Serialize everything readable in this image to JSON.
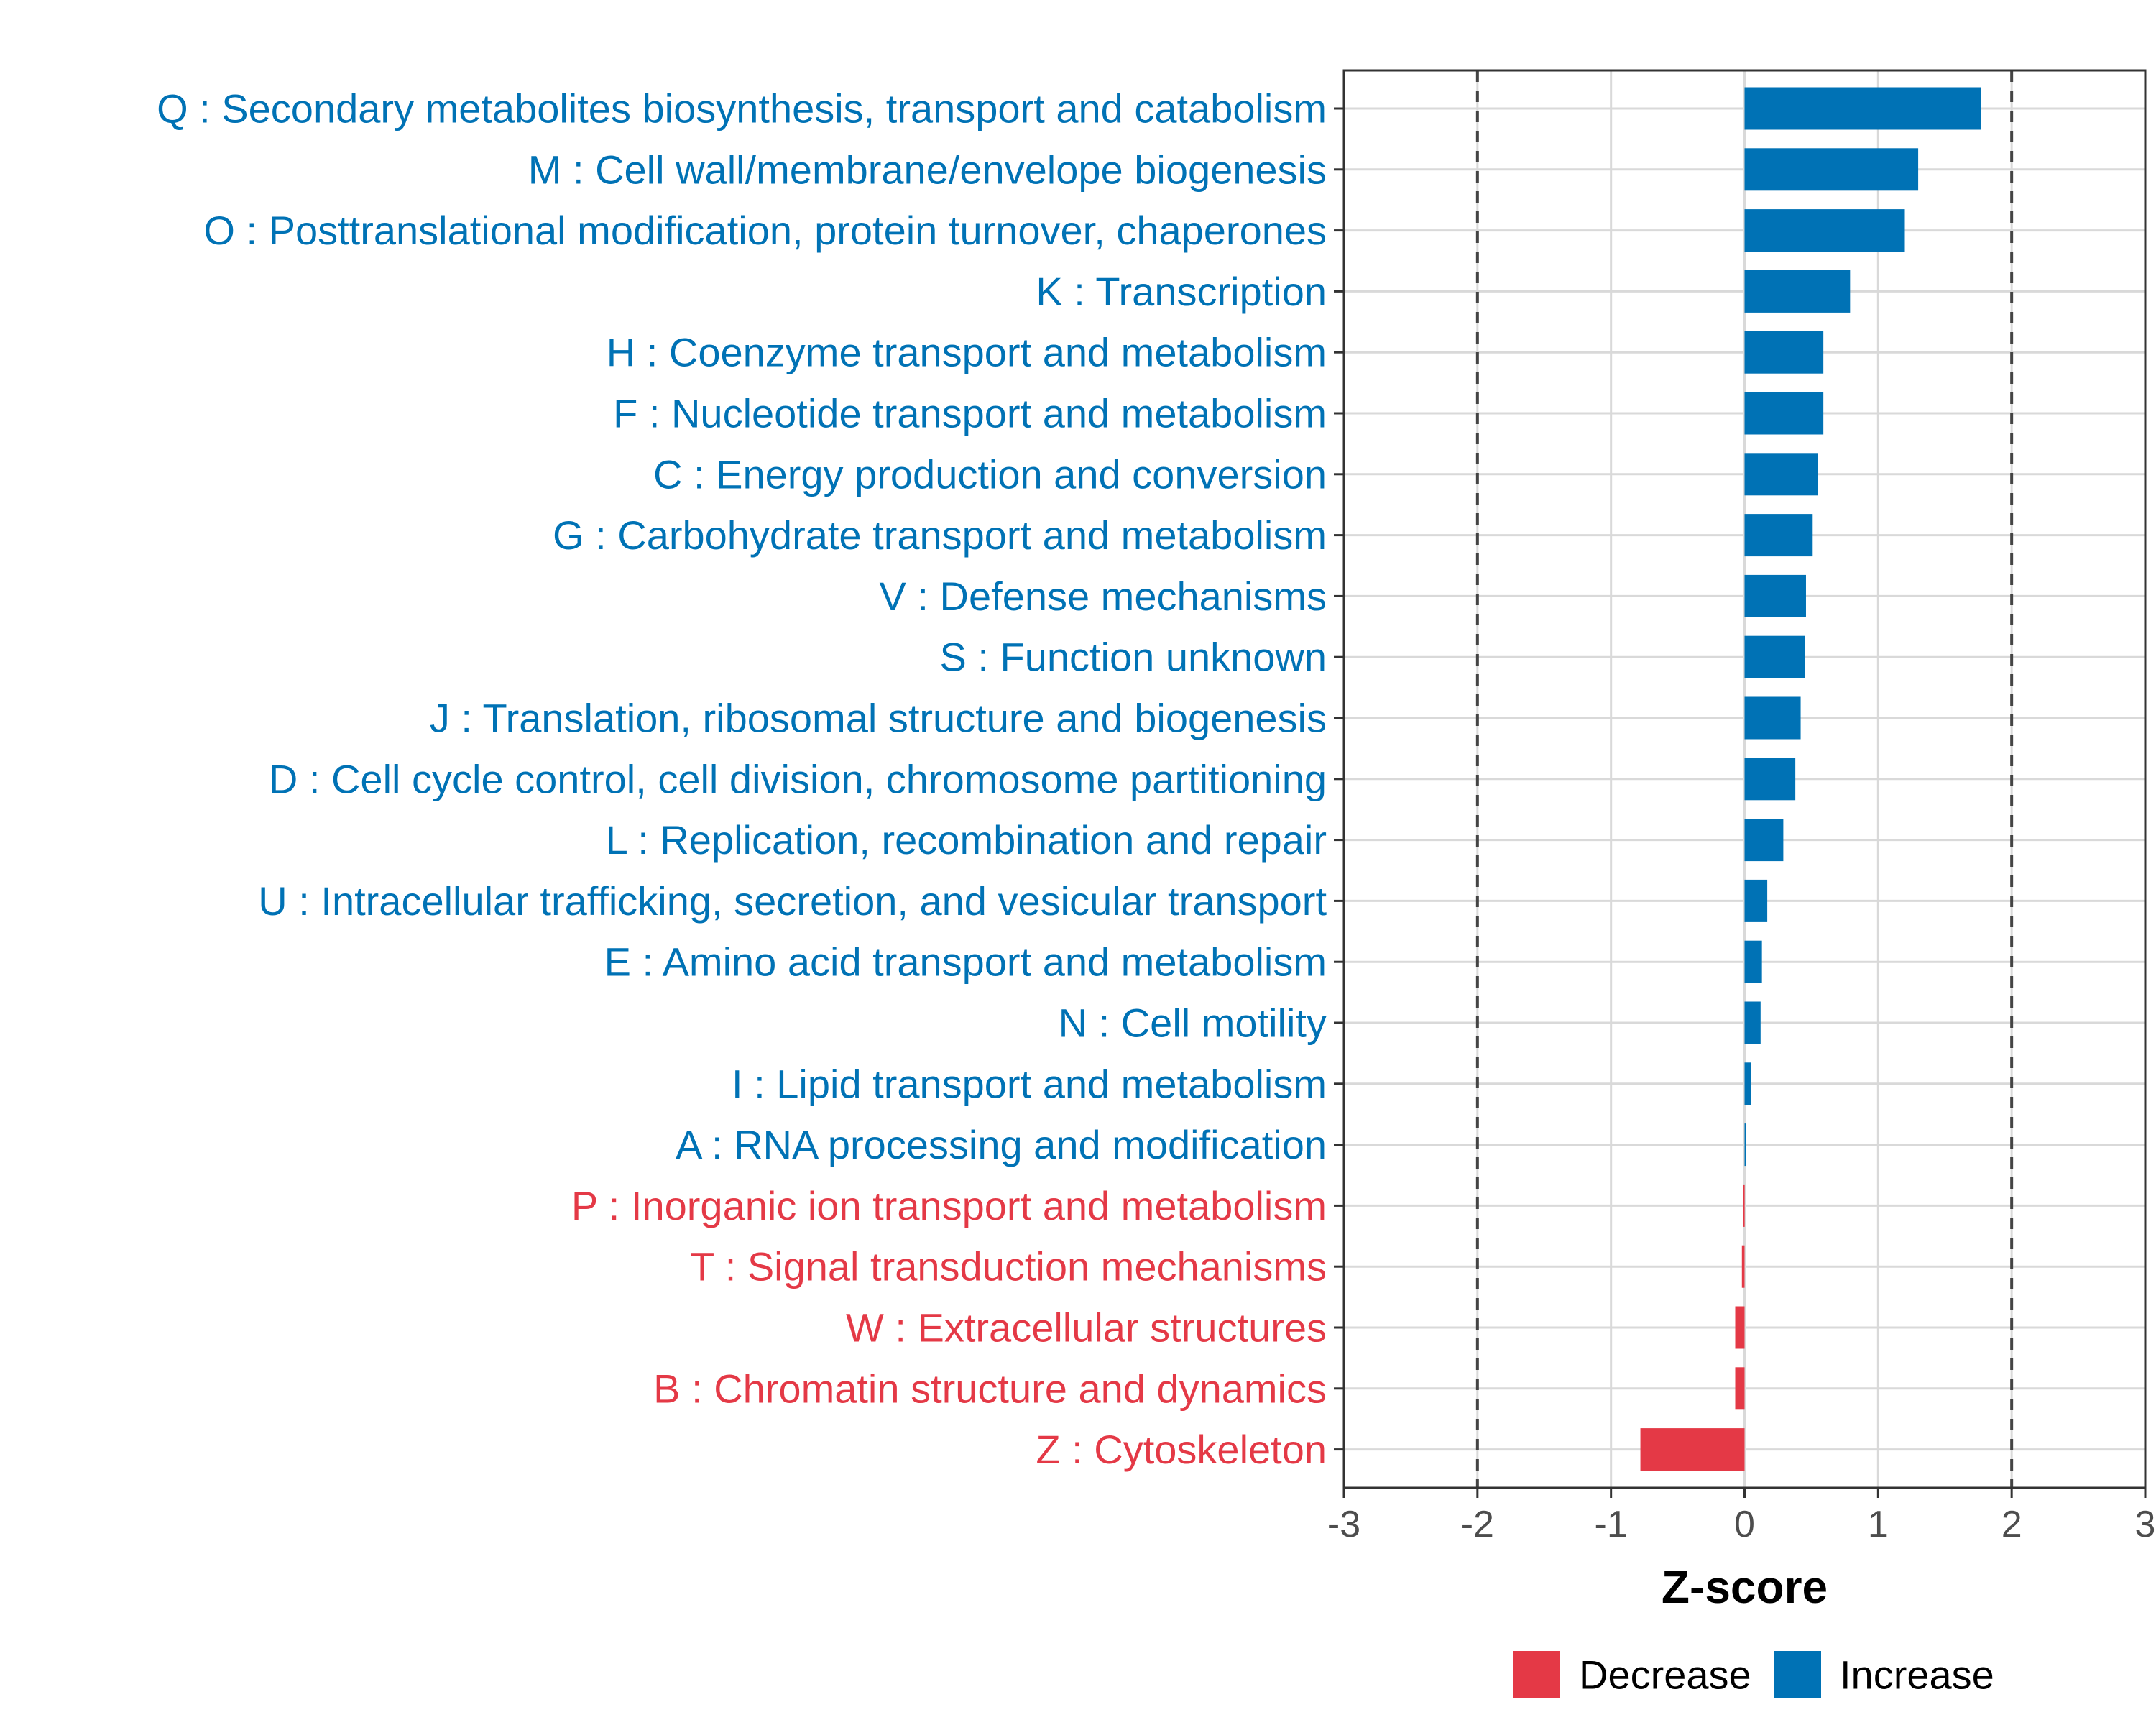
{
  "chart_data": {
    "type": "bar",
    "orientation": "horizontal",
    "title": "",
    "xlabel": "Z-score",
    "ylabel": "",
    "xlim": [
      -3,
      3
    ],
    "xticks": [
      -3,
      -2,
      -1,
      0,
      1,
      2,
      3
    ],
    "xtick_labels": [
      "-3",
      "-2",
      "-1",
      "0",
      "1",
      "2",
      "3"
    ],
    "reference_lines": [
      -2,
      2
    ],
    "grid": true,
    "colors": {
      "Increase": "#0072B5",
      "Decrease": "#E43946"
    },
    "categories": [
      "Q : Secondary metabolites biosynthesis, transport and catabolism",
      "M : Cell wall/membrane/envelope biogenesis",
      "O : Posttranslational modification, protein turnover, chaperones",
      "K : Transcription",
      "H : Coenzyme transport and metabolism",
      "F : Nucleotide transport and metabolism",
      "C : Energy production and conversion",
      "G : Carbohydrate transport and metabolism",
      "V : Defense mechanisms",
      "S : Function unknown",
      "J : Translation, ribosomal structure and biogenesis",
      "D : Cell cycle control, cell division, chromosome partitioning",
      "L : Replication, recombination and repair",
      "U : Intracellular trafficking, secretion, and vesicular transport",
      "E : Amino acid transport and metabolism",
      "N : Cell motility",
      "I : Lipid transport and metabolism",
      "A : RNA processing and modification",
      "P : Inorganic ion transport and metabolism",
      "T : Signal transduction mechanisms",
      "W : Extracellular structures",
      "B : Chromatin structure and dynamics",
      "Z : Cytoskeleton"
    ],
    "values": [
      1.77,
      1.3,
      1.2,
      0.79,
      0.59,
      0.59,
      0.55,
      0.51,
      0.46,
      0.45,
      0.42,
      0.38,
      0.29,
      0.17,
      0.13,
      0.12,
      0.05,
      0.01,
      -0.01,
      -0.02,
      -0.07,
      -0.07,
      -0.78
    ],
    "direction": [
      "Increase",
      "Increase",
      "Increase",
      "Increase",
      "Increase",
      "Increase",
      "Increase",
      "Increase",
      "Increase",
      "Increase",
      "Increase",
      "Increase",
      "Increase",
      "Increase",
      "Increase",
      "Increase",
      "Increase",
      "Increase",
      "Decrease",
      "Decrease",
      "Decrease",
      "Decrease",
      "Decrease"
    ],
    "legend": {
      "position": "bottom",
      "entries": [
        {
          "label": "Decrease",
          "color": "#E43946"
        },
        {
          "label": "Increase",
          "color": "#0072B5"
        }
      ]
    }
  }
}
